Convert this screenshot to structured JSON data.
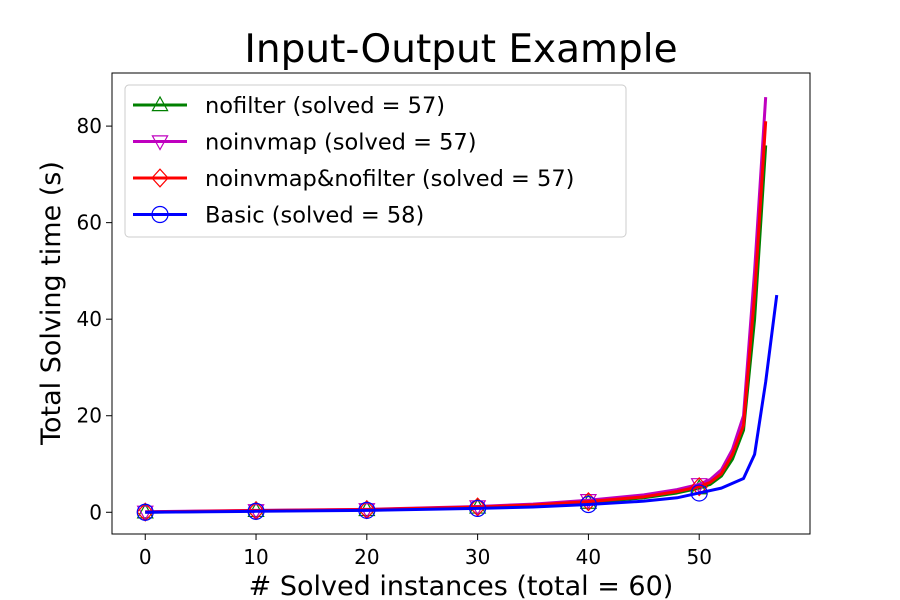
{
  "chart_data": {
    "type": "line",
    "title": "Input-Output Example",
    "xlabel": "# Solved instances (total = 60)",
    "ylabel": "Total Solving time (s)",
    "xlim": [
      -3,
      60
    ],
    "ylim": [
      -4.5,
      91
    ],
    "xticks": [
      0,
      10,
      20,
      30,
      40,
      50
    ],
    "yticks": [
      0,
      20,
      40,
      60,
      80
    ],
    "grid": false,
    "legend_position": "top-left",
    "marker_x": [
      0,
      10,
      20,
      30,
      40,
      50
    ],
    "series": [
      {
        "name": "nofilter (solved = 57)",
        "color": "#008000",
        "marker": "triangle-up",
        "x": [
          0,
          10,
          20,
          30,
          35,
          40,
          45,
          48,
          50,
          51,
          52,
          53,
          54,
          55,
          56
        ],
        "y": [
          0.0,
          0.3,
          0.5,
          1.0,
          1.4,
          2.0,
          3.0,
          4.0,
          5.0,
          5.8,
          7.5,
          11.0,
          17.0,
          40.0,
          76.0
        ]
      },
      {
        "name": "noinvmap (solved = 57)",
        "color": "#bf00bf",
        "marker": "triangle-down",
        "x": [
          0,
          10,
          20,
          30,
          35,
          40,
          45,
          48,
          50,
          51,
          52,
          53,
          54,
          55,
          56
        ],
        "y": [
          0.1,
          0.4,
          0.6,
          1.2,
          1.7,
          2.5,
          3.6,
          4.7,
          5.8,
          6.8,
          8.8,
          13.0,
          20.0,
          50.0,
          86.0
        ]
      },
      {
        "name": "noinvmap&nofilter (solved = 57)",
        "color": "#ff0000",
        "marker": "diamond",
        "x": [
          0,
          10,
          20,
          30,
          35,
          40,
          45,
          48,
          50,
          51,
          52,
          53,
          54,
          55,
          56
        ],
        "y": [
          0.05,
          0.35,
          0.55,
          1.1,
          1.5,
          2.2,
          3.2,
          4.3,
          5.3,
          6.2,
          8.0,
          12.0,
          18.0,
          45.0,
          81.0
        ]
      },
      {
        "name": "Basic (solved = 58)",
        "color": "#0000ff",
        "marker": "circle",
        "x": [
          0,
          10,
          20,
          30,
          35,
          40,
          45,
          48,
          50,
          52,
          54,
          55,
          56,
          57
        ],
        "y": [
          0.0,
          0.2,
          0.4,
          0.8,
          1.1,
          1.6,
          2.3,
          3.0,
          4.0,
          5.0,
          7.0,
          12.0,
          27.0,
          45.0
        ]
      }
    ]
  }
}
